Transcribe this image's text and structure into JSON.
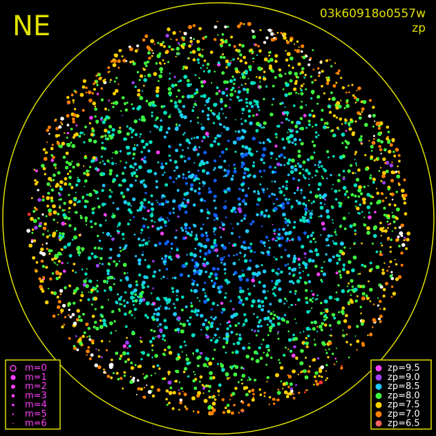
{
  "header": {
    "label": "NE",
    "frame_id": "03k60918o0557w",
    "quantity": "zp"
  },
  "mag_legend": {
    "items": [
      "m=0",
      "m=1",
      "m=2",
      "m=3",
      "m=4",
      "m=5",
      "m=6"
    ]
  },
  "zp_legend": {
    "items": [
      "zp=9.5",
      "zp=9.0",
      "zp=8.5",
      "zp=8.0",
      "zp=7.5",
      "zp=7.0",
      "zp=6.5"
    ]
  }
}
